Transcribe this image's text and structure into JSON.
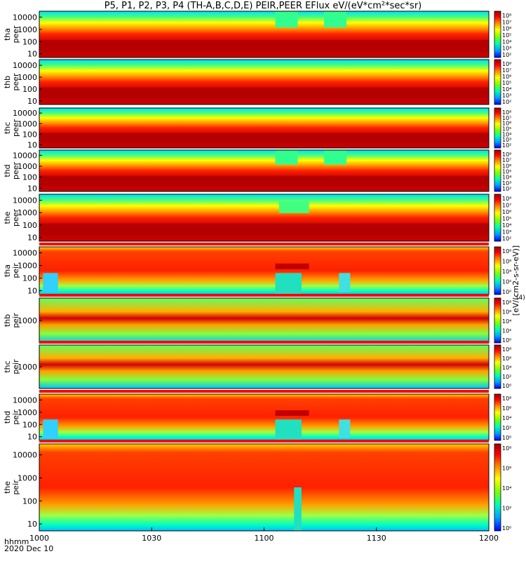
{
  "title": "P5, P1, P2, P3, P4 (TH-A,B,C,D,E) PEIR,PEER EFlux eV/(eV*cm²*sec*sr)",
  "footer": {
    "hhmm": "hhmm",
    "date": "2020 Dec 10"
  },
  "colorbar": {
    "label": "[eV/(cm2-s-sr-eV)]",
    "unit": "(4)",
    "colors": [
      "#0000ff",
      "#00a0ff",
      "#00ffb0",
      "#7fff00",
      "#ffff00",
      "#ff8000",
      "#ff0000",
      "#a00000"
    ],
    "tick_labels_peer": [
      "10⁸",
      "10⁷",
      "10⁶",
      "10⁵",
      "10⁴",
      "10³",
      "10²"
    ],
    "tick_labels_peir": [
      "10⁸",
      "10⁶",
      "10⁴",
      "10²",
      "10⁰"
    ]
  },
  "chart_data": {
    "type": "heatmap",
    "x": {
      "ticks": [
        1000,
        1030,
        1100,
        1130,
        1200
      ],
      "tick_labels": [
        "1000",
        "1030",
        "1100",
        "1130",
        "1200"
      ],
      "range": [
        "10:00",
        "12:00"
      ]
    },
    "panels": [
      {
        "probe": "tha",
        "instrument": "peer",
        "label": [
          "tha",
          "peer"
        ],
        "y_ticks": [
          "10000",
          "1000",
          "100",
          "10"
        ],
        "yrange": [
          5,
          30000
        ],
        "log": true
      },
      {
        "probe": "thb",
        "instrument": "peer",
        "label": [
          "thb",
          "peer"
        ],
        "y_ticks": [
          "10000",
          "1000",
          "100",
          "10"
        ],
        "yrange": [
          5,
          30000
        ],
        "log": true
      },
      {
        "probe": "thc",
        "instrument": "peer",
        "label": [
          "thc",
          "peer"
        ],
        "y_ticks": [
          "10000",
          "1000",
          "100",
          "10"
        ],
        "yrange": [
          5,
          30000
        ],
        "log": true
      },
      {
        "probe": "thd",
        "instrument": "peer",
        "label": [
          "thd",
          "peer"
        ],
        "y_ticks": [
          "10000",
          "1000",
          "100",
          "10"
        ],
        "yrange": [
          5,
          30000
        ],
        "log": true
      },
      {
        "probe": "the",
        "instrument": "peer",
        "label": [
          "the",
          "peer"
        ],
        "y_ticks": [
          "10000",
          "1000",
          "100",
          "10"
        ],
        "yrange": [
          5,
          30000
        ],
        "log": true
      },
      {
        "probe": "tha",
        "instrument": "peir",
        "label": [
          "tha",
          "peir"
        ],
        "y_ticks": [
          "10000",
          "1000",
          "100",
          "10"
        ],
        "yrange": [
          5,
          30000
        ],
        "log": true
      },
      {
        "probe": "thb",
        "instrument": "peir",
        "label": [
          "thb",
          "peir"
        ],
        "y_ticks": [
          "1000"
        ],
        "yrange": [
          5,
          30000
        ],
        "log": true
      },
      {
        "probe": "thc",
        "instrument": "peir",
        "label": [
          "thc",
          "peir"
        ],
        "y_ticks": [
          "1000"
        ],
        "yrange": [
          5,
          30000
        ],
        "log": true
      },
      {
        "probe": "thd",
        "instrument": "peir",
        "label": [
          "thd",
          "peir"
        ],
        "y_ticks": [
          "10000",
          "1000",
          "100",
          "10"
        ],
        "yrange": [
          5,
          30000
        ],
        "log": true
      },
      {
        "probe": "the",
        "instrument": "peir",
        "label": [
          "the",
          "peir"
        ],
        "y_ticks": [
          "10000",
          "1000",
          "100",
          "10"
        ],
        "yrange": [
          5,
          30000
        ],
        "log": true
      }
    ]
  }
}
